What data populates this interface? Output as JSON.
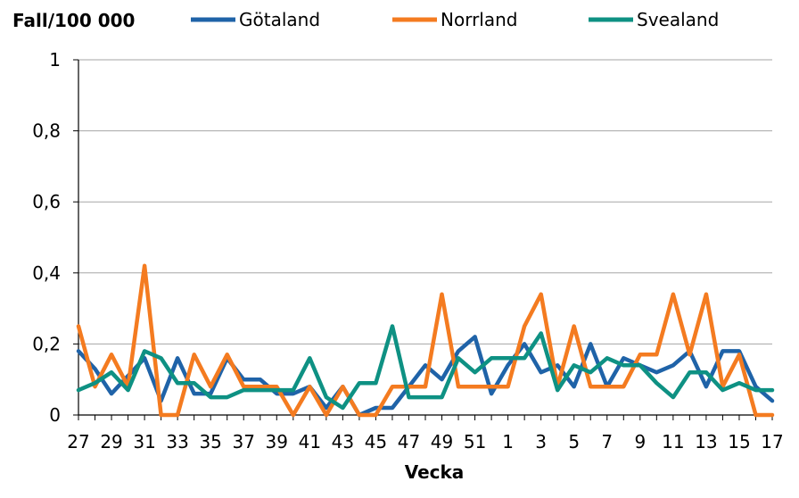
{
  "chart_data": {
    "type": "line",
    "ylabel": "Fall/100 000",
    "xlabel": "Vecka",
    "ylim": [
      0,
      1
    ],
    "yticks": [
      "0",
      "0,2",
      "0,4",
      "0,6",
      "0,8",
      "1"
    ],
    "x": [
      "27",
      "28",
      "29",
      "30",
      "31",
      "32",
      "33",
      "34",
      "35",
      "36",
      "37",
      "38",
      "39",
      "40",
      "41",
      "42",
      "43",
      "44",
      "45",
      "46",
      "47",
      "48",
      "49",
      "50",
      "51",
      "52",
      "1",
      "2",
      "3",
      "4",
      "5",
      "6",
      "7",
      "8",
      "9",
      "10",
      "11",
      "12",
      "13",
      "14",
      "15",
      "16",
      "17"
    ],
    "xtick_labels": [
      "27",
      "29",
      "31",
      "33",
      "35",
      "37",
      "39",
      "41",
      "43",
      "45",
      "47",
      "49",
      "51",
      "1",
      "3",
      "5",
      "7",
      "9",
      "11",
      "13",
      "15",
      "17"
    ],
    "grid": "horizontal",
    "legend_position": "top",
    "series": [
      {
        "name": "Götaland",
        "color": "#1f63a8",
        "values": [
          0.18,
          0.13,
          0.06,
          0.11,
          0.16,
          0.04,
          0.16,
          0.06,
          0.06,
          0.16,
          0.1,
          0.1,
          0.06,
          0.06,
          0.08,
          0.02,
          0.08,
          0.0,
          0.02,
          0.02,
          0.08,
          0.14,
          0.1,
          0.18,
          0.22,
          0.06,
          0.14,
          0.2,
          0.12,
          0.14,
          0.08,
          0.2,
          0.08,
          0.16,
          0.14,
          0.12,
          0.14,
          0.18,
          0.08,
          0.18,
          0.18,
          0.08,
          0.04
        ]
      },
      {
        "name": "Norrland",
        "color": "#f47b20",
        "values": [
          0.25,
          0.08,
          0.17,
          0.08,
          0.42,
          0.0,
          0.0,
          0.17,
          0.08,
          0.17,
          0.08,
          0.08,
          0.08,
          0.0,
          0.08,
          0.0,
          0.08,
          0.0,
          0.0,
          0.08,
          0.08,
          0.08,
          0.34,
          0.08,
          0.08,
          0.08,
          0.08,
          0.25,
          0.34,
          0.08,
          0.25,
          0.08,
          0.08,
          0.08,
          0.17,
          0.17,
          0.34,
          0.17,
          0.34,
          0.08,
          0.17,
          0.0,
          0.0
        ]
      },
      {
        "name": "Svealand",
        "color": "#0e9183",
        "values": [
          0.07,
          0.09,
          0.12,
          0.07,
          0.18,
          0.16,
          0.09,
          0.09,
          0.05,
          0.05,
          0.07,
          0.07,
          0.07,
          0.07,
          0.16,
          0.05,
          0.02,
          0.09,
          0.09,
          0.25,
          0.05,
          0.05,
          0.05,
          0.16,
          0.12,
          0.16,
          0.16,
          0.16,
          0.23,
          0.07,
          0.14,
          0.12,
          0.16,
          0.14,
          0.14,
          0.09,
          0.05,
          0.12,
          0.12,
          0.07,
          0.09,
          0.07,
          0.07
        ]
      }
    ]
  }
}
